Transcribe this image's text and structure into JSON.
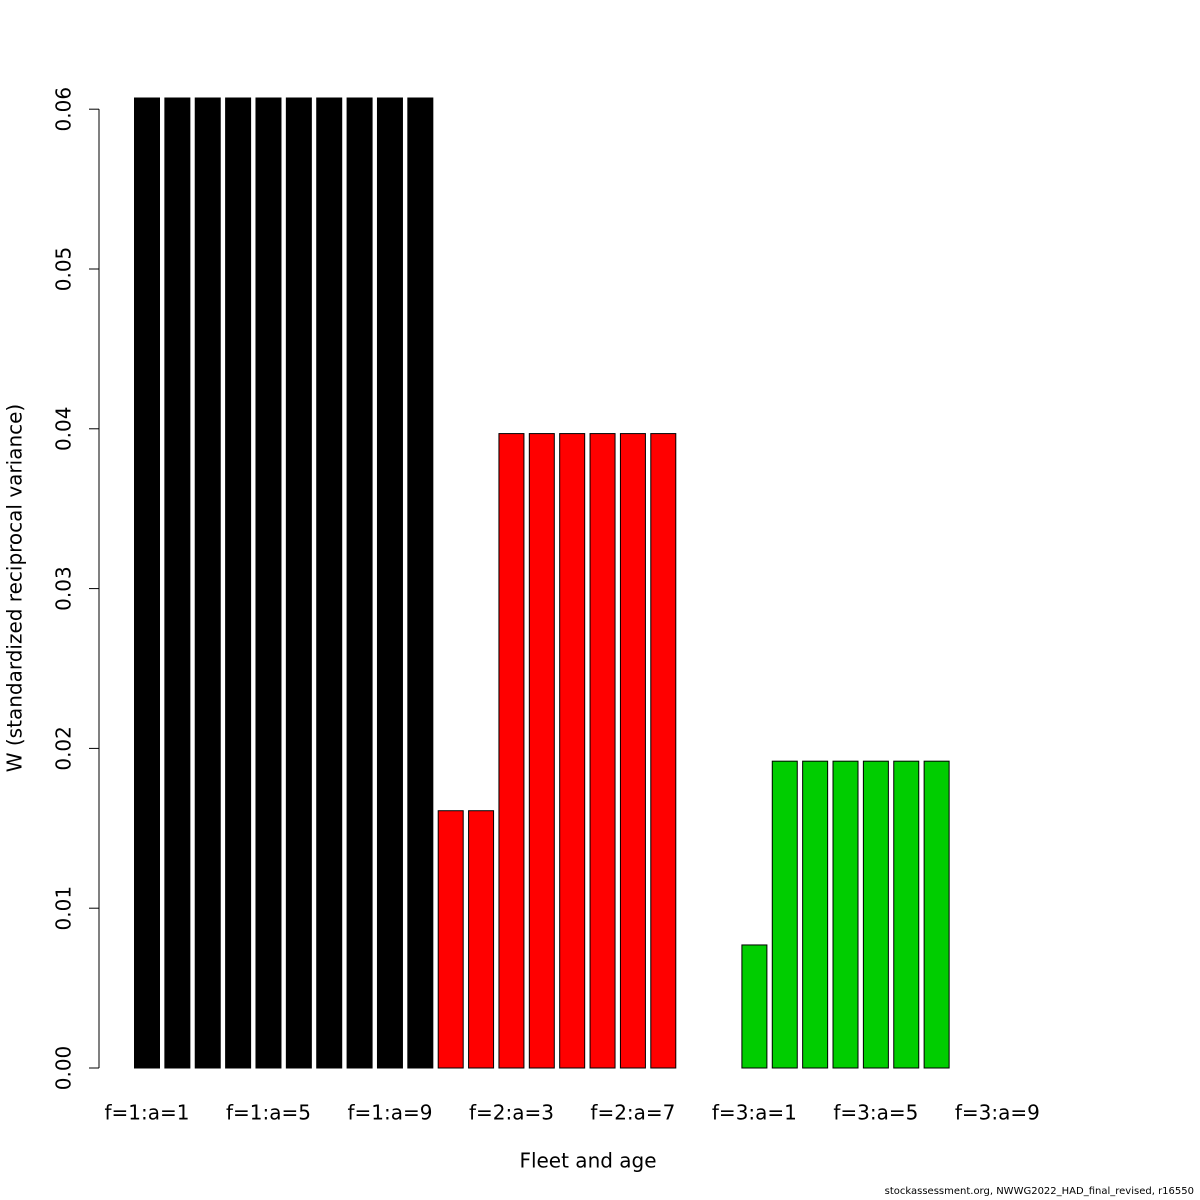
{
  "chart_data": {
    "type": "bar",
    "x_label": "Fleet and age",
    "y_label": "W (standardized reciprocal variance)",
    "footnote": "stockassessment.org, NWWG2022_HAD_final_revised, r16550",
    "categories": [
      "f=1:a=1",
      null,
      null,
      null,
      "f=1:a=5",
      null,
      null,
      null,
      "f=1:a=9",
      null,
      null,
      null,
      "f=2:a=3",
      null,
      null,
      null,
      "f=2:a=7",
      null,
      null,
      null,
      "f=3:a=1",
      null,
      null,
      null,
      "f=3:a=5",
      null,
      null,
      null,
      "f=3:a=9",
      null
    ],
    "values": [
      0.0607,
      0.0607,
      0.0607,
      0.0607,
      0.0607,
      0.0607,
      0.0607,
      0.0607,
      0.0607,
      0.0607,
      0.0161,
      0.0161,
      0.0397,
      0.0397,
      0.0397,
      0.0397,
      0.0397,
      0.0397,
      null,
      null,
      0.0077,
      0.0192,
      0.0192,
      0.0192,
      0.0192,
      0.0192,
      0.0192,
      null,
      null,
      null
    ],
    "colors": [
      "#000000",
      "#000000",
      "#000000",
      "#000000",
      "#000000",
      "#000000",
      "#000000",
      "#000000",
      "#000000",
      "#000000",
      "#ff0000",
      "#ff0000",
      "#ff0000",
      "#ff0000",
      "#ff0000",
      "#ff0000",
      "#ff0000",
      "#ff0000",
      null,
      null,
      "#00cd00",
      "#00cd00",
      "#00cd00",
      "#00cd00",
      "#00cd00",
      "#00cd00",
      "#00cd00",
      null,
      null,
      null
    ],
    "ylim": [
      0,
      0.0607
    ],
    "yticks": [
      {
        "value": 0,
        "label": "0.00"
      },
      0.01,
      0.02,
      0.03,
      0.04,
      0.05,
      0.06
    ]
  }
}
